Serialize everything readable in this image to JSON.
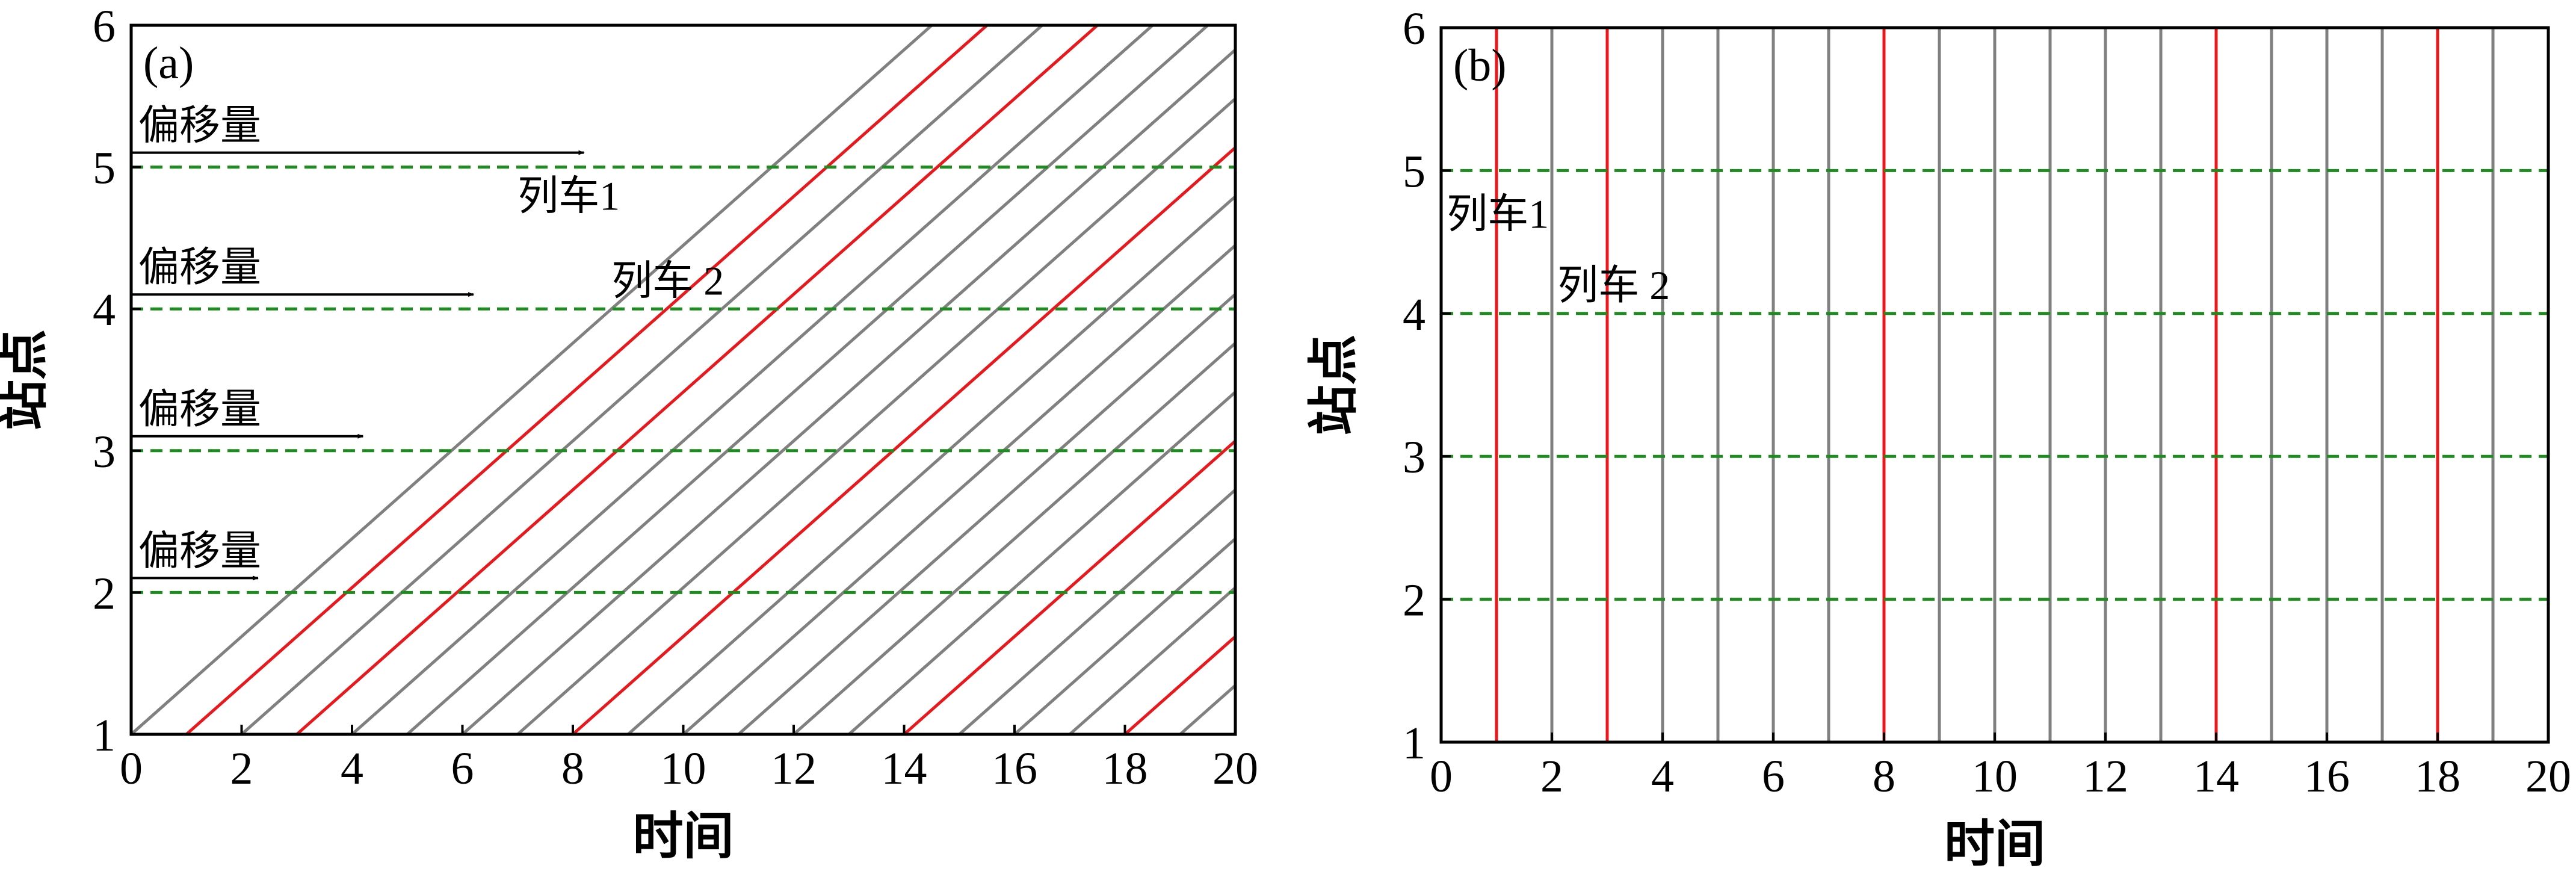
{
  "chart_data": [
    {
      "type": "line",
      "panel_label": "(a)",
      "xlabel": "时间",
      "ylabel": "站点",
      "xlim": [
        0,
        20
      ],
      "ylim": [
        1,
        6
      ],
      "x_ticks": [
        0,
        2,
        4,
        6,
        8,
        10,
        12,
        14,
        16,
        18,
        20
      ],
      "y_ticks": [
        1,
        2,
        3,
        4,
        5,
        6
      ],
      "station_lines": [
        2,
        3,
        4,
        5
      ],
      "trajectory_slope": 0.3448,
      "gray_start_times": [
        0,
        2,
        4,
        5,
        6,
        7,
        9,
        10,
        11,
        12,
        13,
        15,
        16,
        17,
        19
      ],
      "red_start_times": [
        1,
        3,
        8,
        14,
        18
      ],
      "offset_annotations": [
        {
          "label": "偏移量",
          "station": 2,
          "arrow_to_time": 2.3
        },
        {
          "label": "偏移量",
          "station": 3,
          "arrow_to_time": 4.2
        },
        {
          "label": "偏移量",
          "station": 4,
          "arrow_to_time": 6.2
        },
        {
          "label": "偏移量",
          "station": 5,
          "arrow_to_time": 8.2
        }
      ],
      "train_labels": [
        {
          "label": "列车1",
          "x": 7.0,
          "y": 4.7
        },
        {
          "label": "列车 2",
          "x": 8.7,
          "y": 4.1
        }
      ]
    },
    {
      "type": "line",
      "panel_label": "(b)",
      "xlabel": "时间",
      "ylabel": "站点",
      "xlim": [
        0,
        20
      ],
      "ylim": [
        1,
        6
      ],
      "x_ticks": [
        0,
        2,
        4,
        6,
        8,
        10,
        12,
        14,
        16,
        18,
        20
      ],
      "y_ticks": [
        1,
        2,
        3,
        4,
        5,
        6
      ],
      "station_lines": [
        2,
        3,
        4,
        5
      ],
      "gray_start_times": [
        2,
        4,
        5,
        6,
        7,
        9,
        10,
        11,
        12,
        13,
        15,
        16,
        17,
        19
      ],
      "red_start_times": [
        1,
        3,
        8,
        14,
        18
      ],
      "train_labels": [
        {
          "label": "列车1",
          "x": 0.1,
          "y": 4.6
        },
        {
          "label": "列车 2",
          "x": 2.1,
          "y": 4.1
        }
      ]
    }
  ],
  "colors": {
    "gray_line": "#808080",
    "red_line": "#e8181d",
    "station_line": "#1e8c1e",
    "axis": "#000000"
  }
}
